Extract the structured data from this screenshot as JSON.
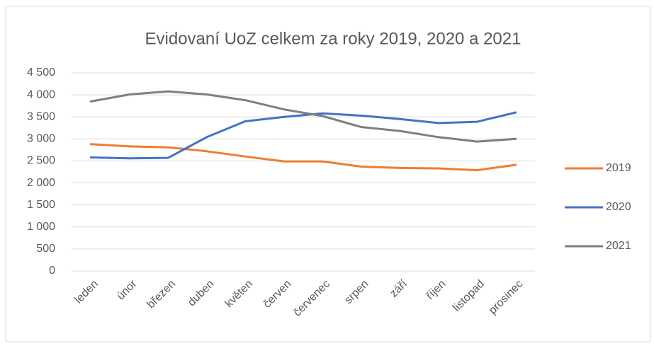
{
  "chart_data": {
    "type": "line",
    "title": "Evidovaní UoZ celkem za roky 2019, 2020 a 2021",
    "categories": [
      "leden",
      "únor",
      "březen",
      "duben",
      "květen",
      "červen",
      "červenec",
      "srpen",
      "září",
      "říjen",
      "listopad",
      "prosinec"
    ],
    "series": [
      {
        "name": "2019",
        "color": "#ed7d31",
        "values": [
          2880,
          2830,
          2810,
          2720,
          2600,
          2490,
          2490,
          2370,
          2340,
          2330,
          2290,
          2410
        ]
      },
      {
        "name": "2020",
        "color": "#4472c4",
        "values": [
          2580,
          2560,
          2570,
          3040,
          3400,
          3500,
          3580,
          3530,
          3450,
          3360,
          3390,
          3600
        ]
      },
      {
        "name": "2021",
        "color": "#7f7f7f",
        "values": [
          3850,
          4010,
          4080,
          4010,
          3880,
          3670,
          3520,
          3270,
          3180,
          3040,
          2940,
          3000
        ]
      }
    ],
    "ylim": [
      0,
      4500
    ],
    "yticks": [
      0,
      500,
      {
        "value": 1000,
        "label": "1 000"
      },
      {
        "value": 1500,
        "label": "1 500"
      },
      {
        "value": 2000,
        "label": "2 000"
      },
      {
        "value": 2500,
        "label": "2 500"
      },
      {
        "value": 3000,
        "label": "3 000"
      },
      {
        "value": 3500,
        "label": "3 500"
      },
      {
        "value": 4000,
        "label": "4 000"
      },
      {
        "value": 4500,
        "label": "4 500"
      }
    ],
    "grid": true,
    "legend": "right"
  }
}
